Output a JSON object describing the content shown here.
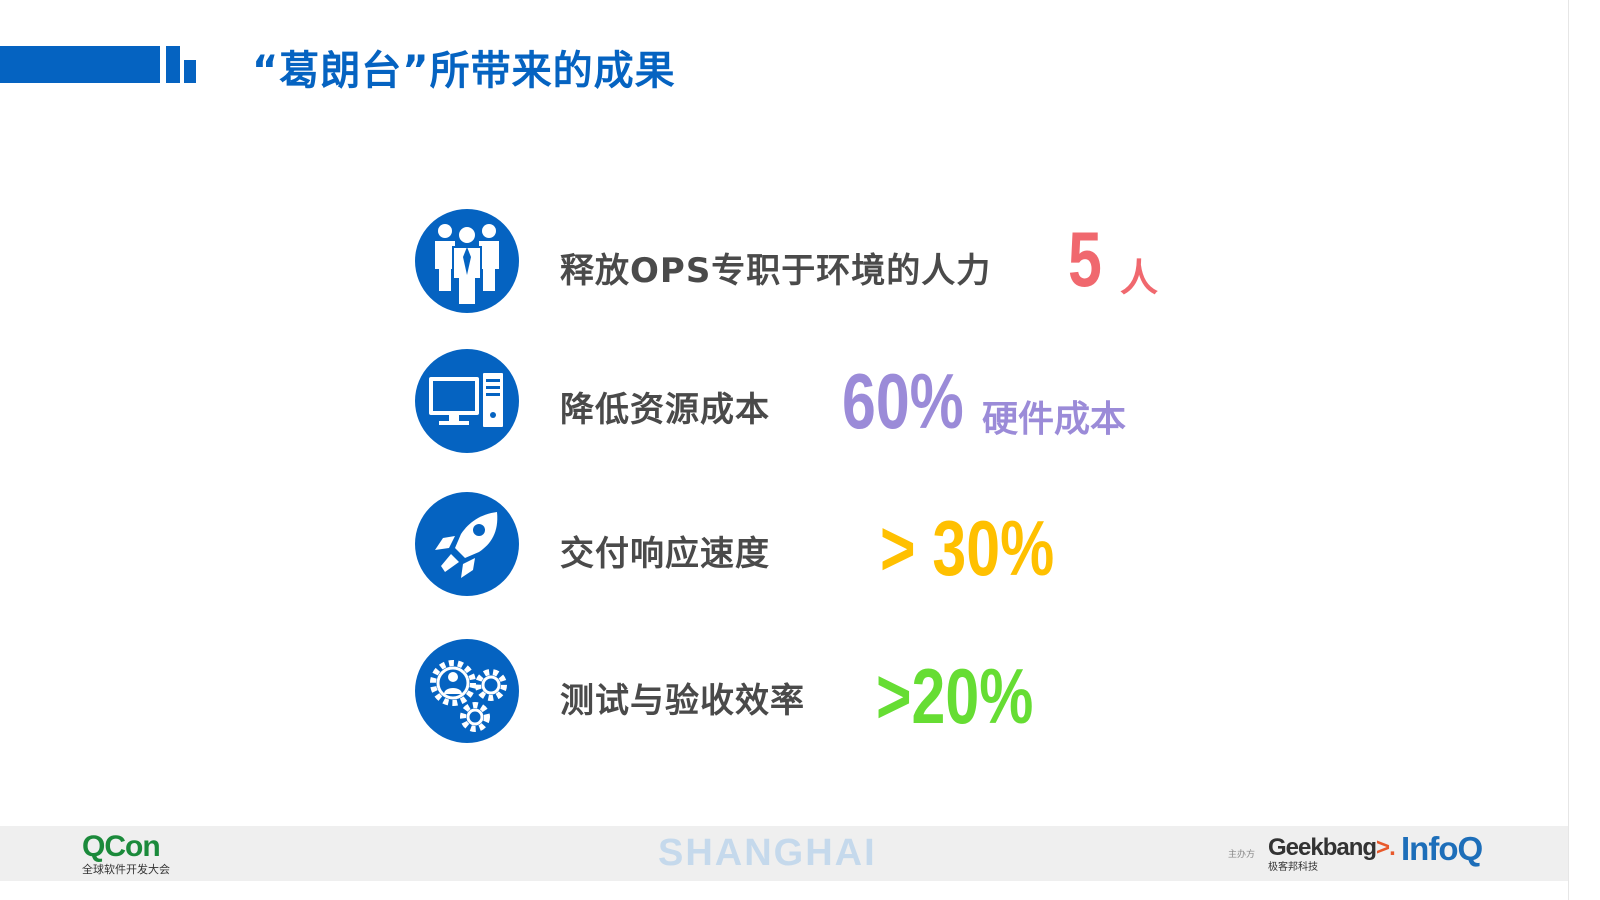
{
  "title": "“葛朗台”所带来的成果",
  "items": [
    {
      "icon": "people-icon",
      "label": "释放OPS专职于环境的人力",
      "value": "5",
      "unit": "人",
      "color": "#f0686e"
    },
    {
      "icon": "computer-icon",
      "label": "降低资源成本",
      "value": "60%",
      "unit": "硬件成本",
      "color": "#9b8bd8"
    },
    {
      "icon": "rocket-icon",
      "label": "交付响应速度",
      "value": "> 30%",
      "unit": "",
      "color": "#ffc000"
    },
    {
      "icon": "gears-person-icon",
      "label": "测试与验收效率",
      "value": ">20%",
      "unit": "",
      "color": "#66dd33"
    }
  ],
  "footer": {
    "qcon": "QCon",
    "qcon_sub": "全球软件开发大会",
    "city": "SHANGHAI",
    "host_label": "主办方",
    "geekbang": "Geekbang",
    "geekbang_arrow": ">.",
    "geekbang_sub": "极客邦科技",
    "infoq": "InfoQ"
  },
  "colors": {
    "brand_blue": "#0563c1",
    "label_gray": "#4a4a4a",
    "footer_bg": "#efefef"
  }
}
